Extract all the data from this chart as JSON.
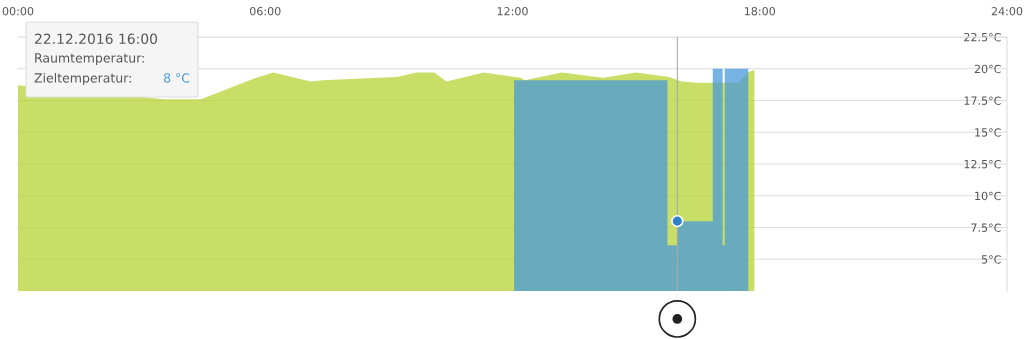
{
  "chart_data": {
    "type": "area",
    "xlim": [
      0,
      24
    ],
    "xticks": [
      {
        "value": 0,
        "label": "00:00"
      },
      {
        "value": 6,
        "label": "06:00"
      },
      {
        "value": 12,
        "label": "12:00"
      },
      {
        "value": 18,
        "label": "18:00"
      },
      {
        "value": 24,
        "label": "24:00"
      }
    ],
    "ylim": [
      2.5,
      22.5
    ],
    "yticks": [
      {
        "value": 5,
        "label": "5°C"
      },
      {
        "value": 7.5,
        "label": "7.5°C"
      },
      {
        "value": 10,
        "label": "10°C"
      },
      {
        "value": 12.5,
        "label": "12.5°C"
      },
      {
        "value": 15,
        "label": "15°C"
      },
      {
        "value": 17.5,
        "label": "17.5°C"
      },
      {
        "value": 20,
        "label": "20°C"
      },
      {
        "value": 22.5,
        "label": "22.5°C"
      }
    ],
    "grid": "y",
    "series": [
      {
        "color": "#b5d334",
        "x": [
          0,
          3.55,
          4.44,
          5.7,
          6.2,
          7.1,
          7.4,
          8.75,
          9.2,
          9.66,
          10.1,
          10.4,
          11.3,
          12.2,
          12.3,
          13.2,
          14.2,
          15.0,
          15.8,
          16.1,
          16.5,
          16.9,
          17.5,
          17.7,
          17.87
        ],
        "values": [
          18.7,
          17.6,
          17.6,
          19.2,
          19.7,
          19.0,
          19.1,
          19.3,
          19.35,
          19.7,
          19.7,
          19.0,
          19.7,
          19.3,
          19.1,
          19.7,
          19.3,
          19.7,
          19.35,
          19.0,
          18.9,
          18.9,
          18.9,
          19.7,
          19.9
        ]
      },
      {
        "color": "#4a9ad8",
        "x": [
          12.04,
          15.76,
          15.76,
          16.0,
          16.0,
          16.86,
          16.86,
          17.1,
          17.1,
          17.15,
          17.15,
          17.72
        ],
        "values": [
          19.1,
          19.1,
          6.1,
          6.1,
          8,
          8,
          20,
          20,
          6.1,
          6.1,
          20,
          20
        ]
      },
      {
        "type": "scatter",
        "color": "#2f80c8",
        "x": [
          16
        ],
        "values": [
          8
        ]
      }
    ],
    "ref_lines": [
      {
        "axis": "x",
        "value": 16,
        "color": "#aaaaaa"
      }
    ],
    "annotations": [
      "22.12.2016 16:00",
      "Raumtemperatur:",
      "Zieltemperatur:",
      "8 °C"
    ]
  }
}
